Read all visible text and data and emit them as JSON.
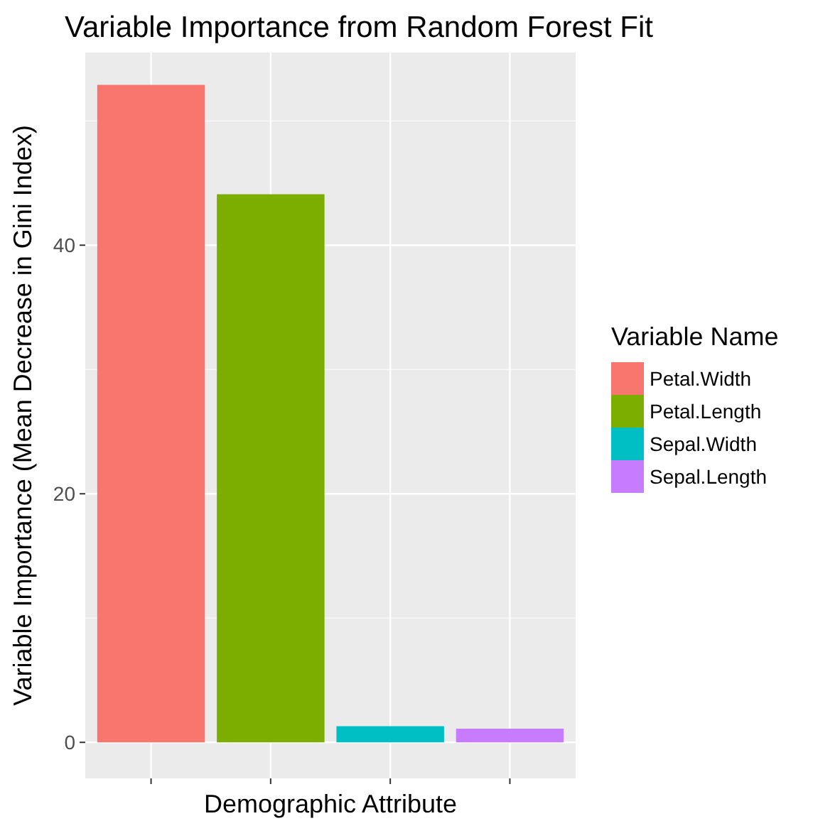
{
  "chart_data": {
    "type": "bar",
    "title": "Variable Importance from Random Forest Fit",
    "xlabel": "Demographic Attribute",
    "ylabel": "Variable Importance (Mean Decrease in Gini Index)",
    "legend_title": "Variable Name",
    "categories": [
      null,
      null,
      null,
      null
    ],
    "series": [
      {
        "name": "Petal.Width",
        "color": "#f8766d",
        "values": [
          52.9,
          null,
          null,
          null
        ]
      },
      {
        "name": "Petal.Length",
        "color": "#7cae00",
        "values": [
          null,
          44.1,
          null,
          null
        ]
      },
      {
        "name": "Sepal.Width",
        "color": "#00bfc4",
        "values": [
          null,
          null,
          1.3,
          null
        ]
      },
      {
        "name": "Sepal.Length",
        "color": "#c77cff",
        "values": [
          null,
          null,
          null,
          1.1
        ]
      }
    ],
    "ylim": [
      -2.9,
      55.5
    ],
    "yticks": [
      0,
      20,
      40
    ],
    "grid": true,
    "legend": "right"
  }
}
